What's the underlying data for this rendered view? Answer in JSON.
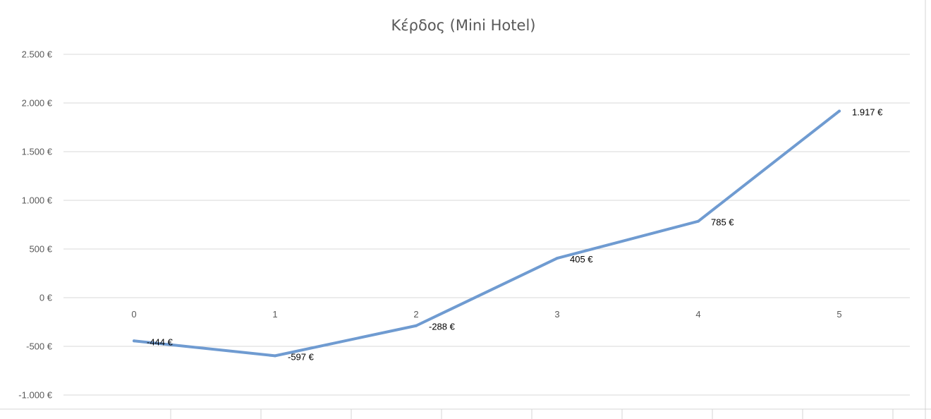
{
  "chart_data": {
    "type": "line",
    "title": "Κέρδος (Mini Hotel)",
    "xlabel": "",
    "ylabel": "",
    "categories": [
      "0",
      "1",
      "2",
      "3",
      "4",
      "5"
    ],
    "series": [
      {
        "values": [
          -444,
          -597,
          -288,
          405,
          785,
          1917
        ],
        "data_labels": [
          "-444 €",
          "-597 €",
          "-288 €",
          "405 €",
          "785 €",
          "1.917 €"
        ]
      }
    ],
    "ylim": [
      -1000,
      2500
    ],
    "yticks": [
      2500,
      2000,
      1500,
      1000,
      500,
      0,
      -500,
      -1000
    ],
    "ytick_labels": [
      "2.500 €",
      "2.000 €",
      "1.500 €",
      "1.000 €",
      "500 €",
      "0 €",
      "-500 €",
      "-1.000 €"
    ],
    "grid": true,
    "legend": "none",
    "line_color": "#6f9bd1"
  }
}
